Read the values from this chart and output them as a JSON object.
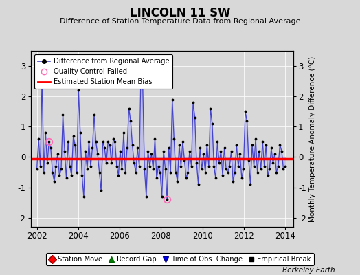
{
  "title": "LINCOLN 11 SW",
  "subtitle": "Difference of Station Temperature Data from Regional Average",
  "ylabel_right": "Monthly Temperature Anomaly Difference (°C)",
  "ylim": [
    -2.3,
    3.5
  ],
  "xlim": [
    2001.7,
    2014.4
  ],
  "xticks": [
    2002,
    2004,
    2006,
    2008,
    2010,
    2012,
    2014
  ],
  "yticks": [
    -2,
    -1,
    0,
    1,
    2,
    3
  ],
  "background_color": "#d8d8d8",
  "plot_bg_color": "#d8d8d8",
  "bias_line_y": -0.05,
  "watermark": "Berkeley Earth",
  "line_color": "#4444cc",
  "fill_color": "#aaaaee",
  "dot_color": "#000000",
  "qc_fail_indices": [
    7,
    75
  ],
  "qc_fail_color": "#ff69b4",
  "signal_values": [
    -0.4,
    0.6,
    -0.3,
    2.6,
    -0.5,
    0.8,
    -0.2,
    0.5,
    0.3,
    -0.5,
    -0.8,
    -0.3,
    0.1,
    -0.6,
    -0.4,
    1.4,
    0.2,
    -0.7,
    0.5,
    -0.3,
    -0.6,
    0.7,
    0.4,
    -0.5,
    2.2,
    0.8,
    -0.6,
    -1.3,
    0.2,
    -0.4,
    0.5,
    -0.3,
    0.3,
    1.4,
    0.5,
    0.1,
    -0.5,
    -1.1,
    0.5,
    0.3,
    -0.2,
    0.5,
    0.4,
    -0.2,
    0.6,
    0.5,
    -0.3,
    -0.6,
    0.2,
    -0.4,
    0.8,
    -0.5,
    0.3,
    1.6,
    1.2,
    0.4,
    -0.2,
    -0.5,
    0.3,
    -0.3,
    3.1,
    2.3,
    -0.4,
    -1.3,
    0.2,
    -0.3,
    0.1,
    -0.4,
    0.6,
    -0.7,
    -0.3,
    -0.5,
    -1.3,
    0.2,
    -0.4,
    -1.4,
    0.3,
    -0.5,
    1.9,
    0.6,
    -0.5,
    -0.8,
    0.4,
    -0.3,
    0.5,
    -0.1,
    -0.7,
    -0.5,
    0.2,
    -0.3,
    1.8,
    1.3,
    -0.2,
    -0.9,
    0.3,
    -0.4,
    0.1,
    -0.5,
    0.4,
    -0.3,
    1.6,
    1.1,
    -0.3,
    -0.7,
    0.5,
    -0.2,
    0.2,
    -0.6,
    0.3,
    -0.4,
    -0.5,
    -0.3,
    0.2,
    -0.8,
    -0.5,
    0.4,
    -0.3,
    0.1,
    -0.7,
    -0.4,
    1.5,
    1.2,
    -0.1,
    -0.9,
    0.4,
    -0.3,
    0.6,
    -0.5,
    0.2,
    -0.4,
    0.5,
    -0.3,
    0.4,
    -0.6,
    -0.4,
    0.3,
    -0.2,
    0.1,
    -0.5,
    -0.3,
    0.4,
    0.2,
    -0.4,
    -0.3
  ]
}
